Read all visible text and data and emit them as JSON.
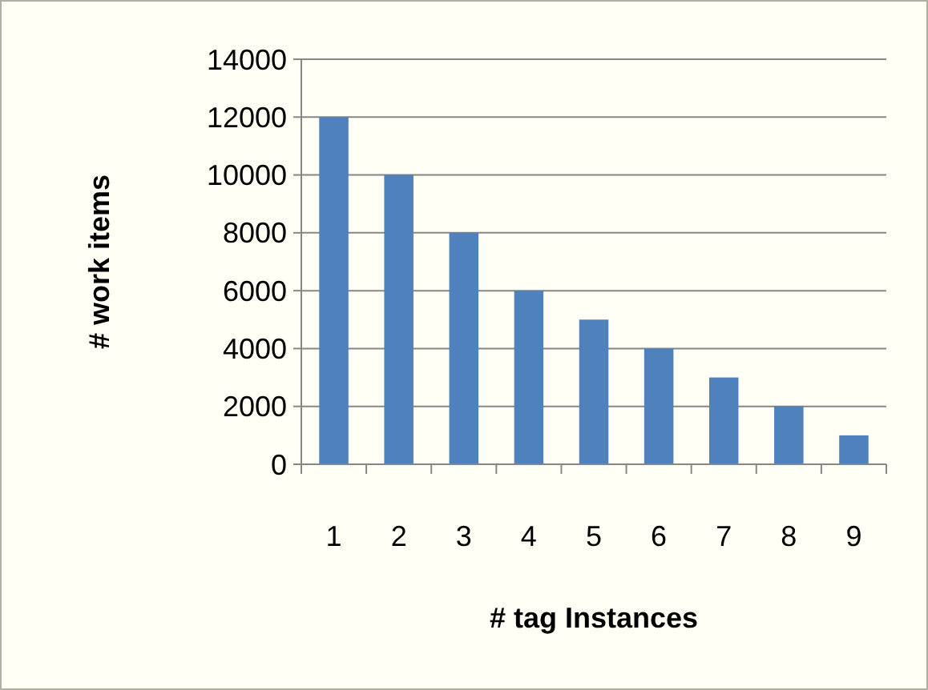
{
  "chart_data": {
    "type": "bar",
    "xlabel": "# tag Instances",
    "ylabel": "# work items",
    "categories": [
      "1",
      "2",
      "3",
      "4",
      "5",
      "6",
      "7",
      "8",
      "9"
    ],
    "values": [
      12000,
      10000,
      8000,
      6000,
      5000,
      4000,
      3000,
      2000,
      1000
    ],
    "color": "#4f81bd",
    "ylim": [
      0,
      14000
    ],
    "yticks": [
      0,
      2000,
      4000,
      6000,
      8000,
      10000,
      12000,
      14000
    ],
    "grid": "y"
  }
}
